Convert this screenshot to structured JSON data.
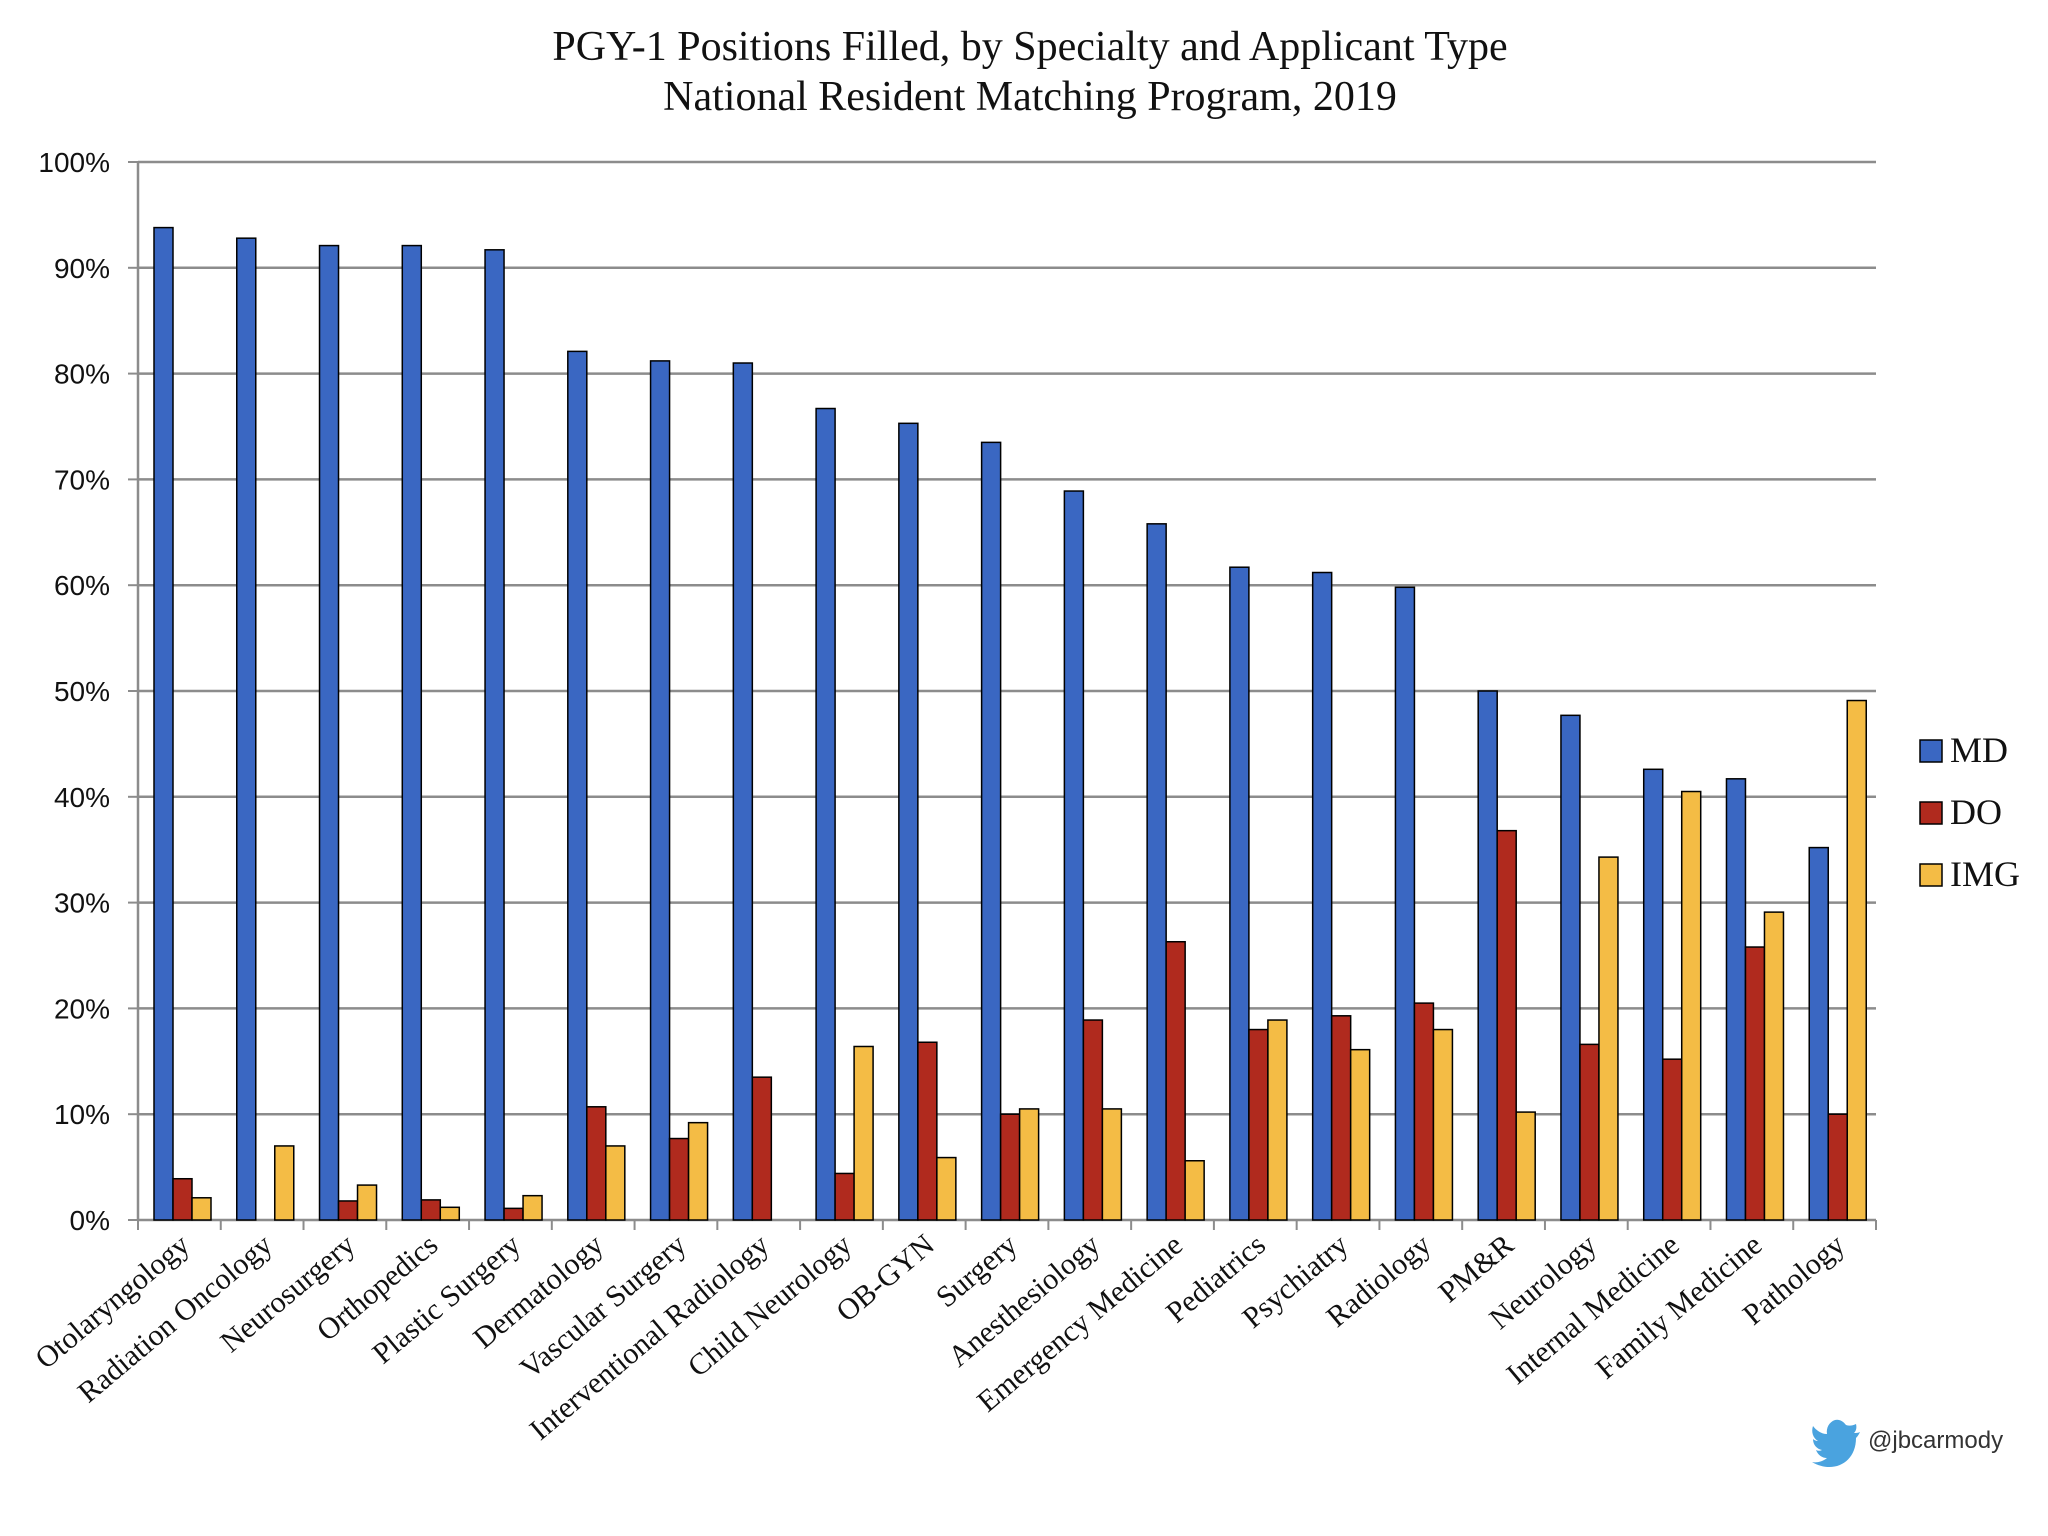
{
  "chart_data": {
    "type": "bar",
    "title": "PGY-1 Positions Filled, by Specialty and Applicant Type",
    "subtitle": "National Resident Matching Program, 2019",
    "xlabel": "",
    "ylabel": "",
    "ylim": [
      0,
      100
    ],
    "y_ticks": [
      "0%",
      "10%",
      "20%",
      "30%",
      "40%",
      "50%",
      "60%",
      "70%",
      "80%",
      "90%",
      "100%"
    ],
    "y_tick_values": [
      0,
      10,
      20,
      30,
      40,
      50,
      60,
      70,
      80,
      90,
      100
    ],
    "grid": true,
    "legend_position": "right",
    "categories": [
      "Otolaryngology",
      "Radiation Oncology",
      "Neurosurgery",
      "Orthopedics",
      "Plastic Surgery",
      "Dermatology",
      "Vascular Surgery",
      "Interventional Radiology",
      "Child Neurology",
      "OB-GYN",
      "Surgery",
      "Anesthesiology",
      "Emergency Medicine",
      "Pediatrics",
      "Psychiatry",
      "Radiology",
      "PM&R",
      "Neurology",
      "Internal Medicine",
      "Family Medicine",
      "Pathology"
    ],
    "series": [
      {
        "name": "MD",
        "color": "#3a67c2",
        "values": [
          93.8,
          92.8,
          92.1,
          92.1,
          91.7,
          82.1,
          81.2,
          81.0,
          76.7,
          75.3,
          73.5,
          68.9,
          65.8,
          61.7,
          61.2,
          59.8,
          50.0,
          47.7,
          42.6,
          41.7,
          35.2
        ]
      },
      {
        "name": "DO",
        "color": "#b02a1e",
        "values": [
          3.9,
          0.0,
          1.8,
          1.9,
          1.1,
          10.7,
          7.7,
          13.5,
          4.4,
          16.8,
          10.0,
          18.9,
          26.3,
          18.0,
          19.3,
          20.5,
          36.8,
          16.6,
          15.2,
          25.8,
          10.0
        ]
      },
      {
        "name": "IMG",
        "color": "#f4bc45",
        "values": [
          2.1,
          7.0,
          3.3,
          1.2,
          2.3,
          7.0,
          9.2,
          0.0,
          16.4,
          5.9,
          10.5,
          10.5,
          5.6,
          18.9,
          16.1,
          18.0,
          10.2,
          34.3,
          40.5,
          29.1,
          49.1
        ]
      }
    ]
  },
  "credit": {
    "icon": "twitter-bird-icon",
    "handle": "@jbcarmody",
    "color": "#4aa3df"
  }
}
